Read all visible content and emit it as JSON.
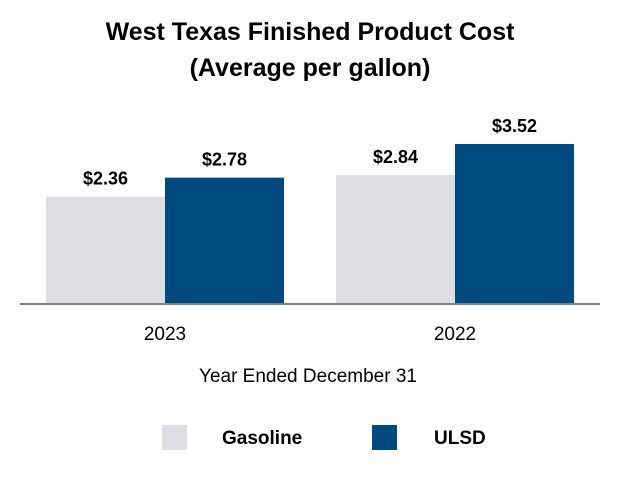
{
  "chart_data": {
    "type": "bar",
    "title": [
      "West Texas Finished Product Cost",
      "(Average per gallon)"
    ],
    "categories": [
      "2023",
      "2022"
    ],
    "series": [
      {
        "name": "Gasoline",
        "values": [
          2.36,
          2.84
        ],
        "labels": [
          "$2.36",
          "$2.84"
        ],
        "color": "#dddee3"
      },
      {
        "name": "ULSD",
        "values": [
          2.78,
          3.52
        ],
        "labels": [
          "$2.78",
          "$3.52"
        ],
        "color": "#004a80"
      }
    ],
    "xlabel": "Year Ended December 31",
    "ylabel": "",
    "ylim": [
      0,
      3.52
    ],
    "grid": false,
    "legend_position": "bottom-center",
    "axis_color": "#7f7f7f"
  }
}
